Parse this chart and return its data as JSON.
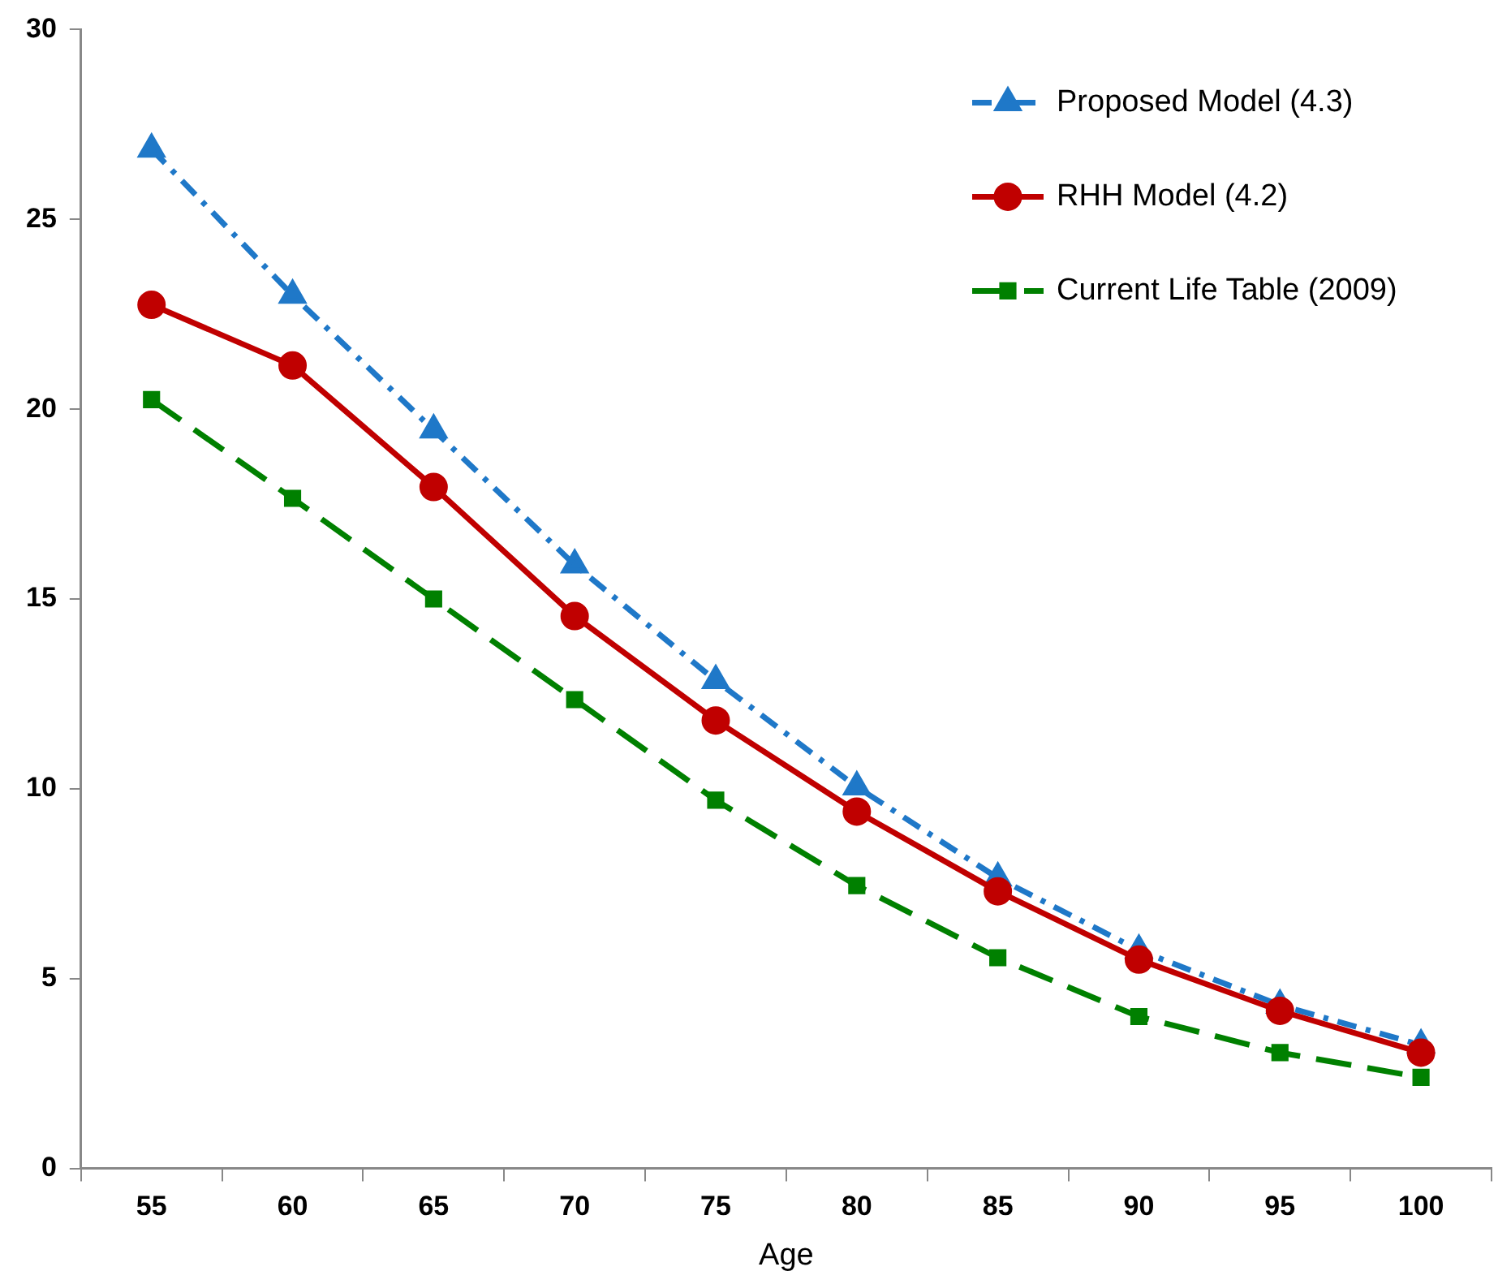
{
  "chart_data": {
    "type": "line",
    "xlabel": "Age",
    "categories": [
      "55",
      "60",
      "65",
      "70",
      "75",
      "80",
      "85",
      "90",
      "95",
      "100"
    ],
    "series": [
      {
        "name": "Proposed Model (4.3)",
        "color": "#1f78c8",
        "marker": "triangle",
        "line_style": "dashdot",
        "values": [
          26.85,
          23.0,
          19.45,
          15.9,
          12.85,
          10.05,
          7.65,
          5.75,
          4.3,
          3.25
        ]
      },
      {
        "name": "RHH Model (4.2)",
        "color": "#c00000",
        "marker": "circle",
        "line_style": "solid",
        "values": [
          22.75,
          21.15,
          17.95,
          14.55,
          11.8,
          9.4,
          7.3,
          5.5,
          4.15,
          3.05
        ]
      },
      {
        "name": "Current Life Table (2009)",
        "color": "#008000",
        "marker": "square",
        "line_style": "dashed",
        "values": [
          20.25,
          17.65,
          15.0,
          12.35,
          9.7,
          7.45,
          5.55,
          4.0,
          3.05,
          2.4
        ]
      }
    ],
    "ylim": [
      0,
      30
    ],
    "yticks": [
      0,
      5,
      10,
      15,
      20,
      25,
      30
    ],
    "grid": false,
    "legend": "top right"
  }
}
